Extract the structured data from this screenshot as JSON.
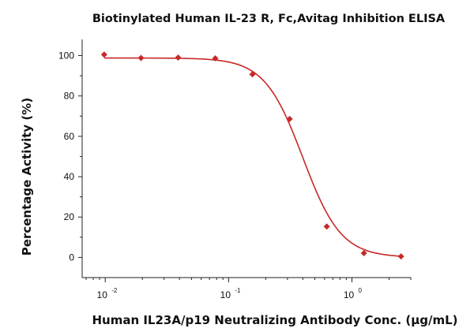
{
  "chart_data": {
    "type": "scatter",
    "title": "Biotinylated Human IL-23 R, Fc,Avitag Inhibition ELISA",
    "xlabel": "Human IL23A/p19 Neutralizing Antibody Conc. (μg/mL)",
    "ylabel": "Percentage Activity (%)",
    "x_scale": "log",
    "xlim": [
      0.0065,
      3.0
    ],
    "ylim": [
      -10,
      108
    ],
    "x_ticks": [
      {
        "value": 0.01,
        "base": "10",
        "exp": "-2"
      },
      {
        "value": 0.1,
        "base": "10",
        "exp": "-1"
      },
      {
        "value": 1,
        "base": "10",
        "exp": "0"
      }
    ],
    "y_ticks": [
      0,
      20,
      40,
      60,
      80,
      100
    ],
    "grid": false,
    "color": "#c62828",
    "series": [
      {
        "x": [
          0.0098,
          0.0195,
          0.039,
          0.078,
          0.156,
          0.3125,
          0.625,
          1.25,
          2.5
        ],
        "values": [
          100.5,
          98.8,
          99.0,
          98.6,
          90.7,
          68.6,
          15.3,
          2.1,
          0.5
        ]
      }
    ],
    "fit": {
      "bottom": 0.0,
      "top": 98.8,
      "ec50": 0.4,
      "hill": 2.8
    }
  }
}
